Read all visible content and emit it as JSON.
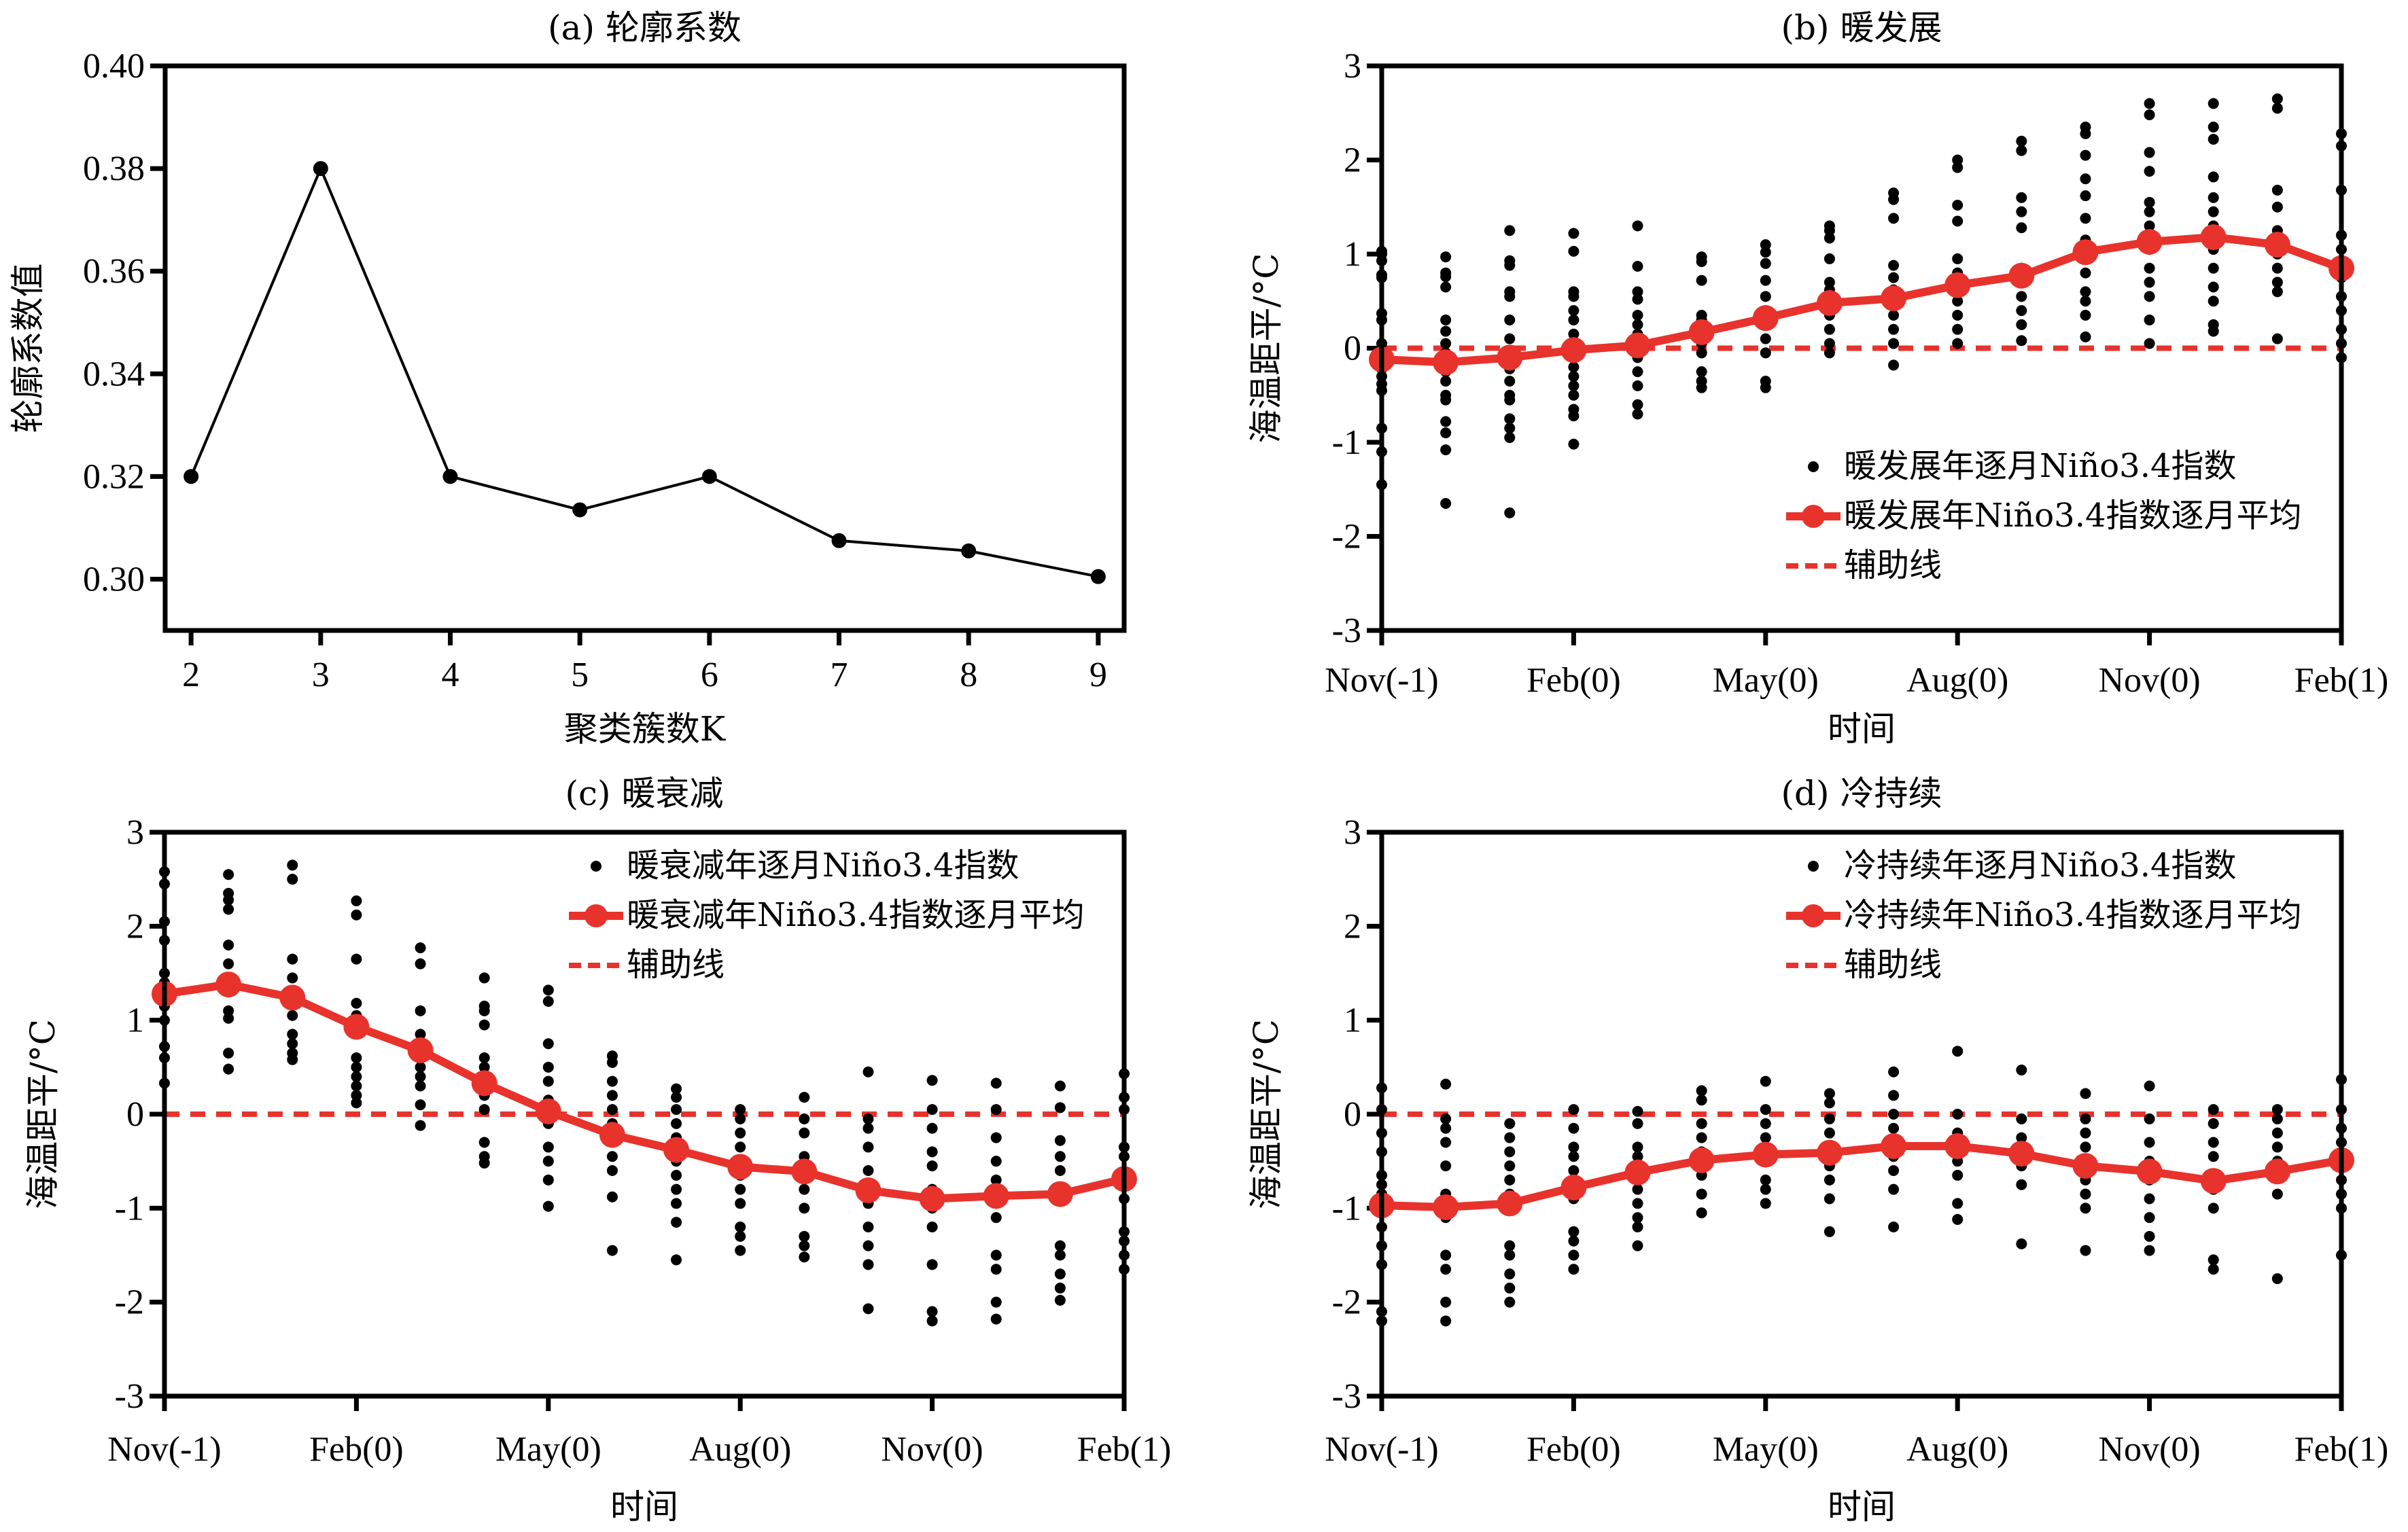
{
  "chart_data": [
    {
      "id": "a",
      "type": "line",
      "title": "(a) 轮廓系数",
      "xlabel": "聚类簇数K",
      "ylabel": "轮廓系数值",
      "x": [
        2,
        3,
        4,
        5,
        6,
        7,
        8,
        9
      ],
      "values": [
        0.32,
        0.38,
        0.32,
        0.3135,
        0.32,
        0.3075,
        0.3055,
        0.3005
      ],
      "xticks": [
        "2",
        "3",
        "4",
        "5",
        "6",
        "7",
        "8",
        "9"
      ],
      "yticks": [
        "0.30",
        "0.32",
        "0.34",
        "0.36",
        "0.38",
        "0.40"
      ],
      "ytick_values": [
        0.3,
        0.32,
        0.34,
        0.36,
        0.38,
        0.4
      ],
      "xlim": [
        1.8,
        9.2
      ],
      "ylim": [
        0.29,
        0.4
      ],
      "grid": false,
      "line_color": "#000000"
    },
    {
      "id": "b",
      "type": "scatter+line",
      "title": "(b) 暖发展",
      "xlabel": "时间",
      "ylabel": "海温距平/°C",
      "xticks": [
        "Nov(-1)",
        "Feb(0)",
        "May(0)",
        "Aug(0)",
        "Nov(0)",
        "Feb(1)"
      ],
      "xtick_positions": [
        0,
        3,
        6,
        9,
        12,
        15
      ],
      "yticks": [
        "-3",
        "-2",
        "-1",
        "0",
        "1",
        "2",
        "3"
      ],
      "ytick_values": [
        -3,
        -2,
        -1,
        0,
        1,
        2,
        3
      ],
      "xlim": [
        0,
        15
      ],
      "ylim": [
        -3,
        3
      ],
      "grid": false,
      "legend_position": "lower-right",
      "legend": [
        "暖发展年逐月Niño3.4指数",
        "暖发展年Niño3.4指数逐月平均",
        "辅助线"
      ],
      "mean": [
        -0.12,
        -0.15,
        -0.1,
        -0.02,
        0.03,
        0.17,
        0.32,
        0.48,
        0.53,
        0.67,
        0.77,
        1.02,
        1.13,
        1.18,
        1.1,
        0.85
      ],
      "reference_line": 0,
      "points": [
        [
          1.03,
          1.0,
          0.93,
          0.78,
          0.75,
          0.37,
          0.3,
          0.05,
          -0.12,
          -0.22,
          -0.3,
          -0.38,
          -0.45,
          -0.85,
          -1.1,
          -1.45
        ],
        [
          0.97,
          0.8,
          0.76,
          0.65,
          0.3,
          0.18,
          0.05,
          -0.05,
          -0.25,
          -0.35,
          -0.5,
          -0.55,
          -0.78,
          -0.9,
          -1.08,
          -1.65
        ],
        [
          1.25,
          0.93,
          0.88,
          0.6,
          0.55,
          0.3,
          0.1,
          -0.05,
          -0.22,
          -0.35,
          -0.5,
          -0.55,
          -0.75,
          -0.85,
          -0.95,
          -1.75
        ],
        [
          1.22,
          1.03,
          0.6,
          0.55,
          0.4,
          0.3,
          0.15,
          -0.05,
          -0.2,
          -0.3,
          -0.4,
          -0.5,
          -0.65,
          -0.72,
          -1.02
        ],
        [
          1.3,
          0.87,
          0.6,
          0.52,
          0.35,
          0.25,
          0.15,
          0.05,
          -0.1,
          -0.25,
          -0.4,
          -0.6,
          -0.7
        ],
        [
          0.97,
          0.92,
          0.72,
          0.35,
          0.3,
          0.18,
          0.05,
          -0.05,
          -0.25,
          -0.35,
          -0.42
        ],
        [
          1.1,
          1.02,
          0.9,
          0.72,
          0.55,
          0.4,
          0.25,
          0.1,
          -0.05,
          -0.35,
          -0.42
        ],
        [
          1.3,
          1.25,
          1.17,
          0.95,
          0.7,
          0.62,
          0.45,
          0.35,
          0.2,
          0.05,
          -0.05
        ],
        [
          1.65,
          1.58,
          1.38,
          0.88,
          0.75,
          0.62,
          0.5,
          0.35,
          0.2,
          0.05,
          -0.18
        ],
        [
          2.0,
          1.92,
          1.52,
          1.35,
          0.95,
          0.8,
          0.65,
          0.5,
          0.35,
          0.2,
          0.05
        ],
        [
          2.2,
          2.1,
          1.6,
          1.45,
          1.28,
          0.85,
          0.7,
          0.55,
          0.4,
          0.25,
          0.08
        ],
        [
          2.35,
          2.28,
          2.05,
          1.8,
          1.62,
          1.38,
          1.15,
          0.95,
          0.8,
          0.6,
          0.5,
          0.35,
          0.12
        ],
        [
          2.6,
          2.48,
          2.08,
          1.88,
          1.55,
          1.45,
          1.3,
          1.05,
          0.85,
          0.7,
          0.55,
          0.3,
          0.05
        ],
        [
          2.6,
          2.35,
          2.22,
          1.82,
          1.6,
          1.45,
          1.3,
          1.05,
          0.85,
          0.65,
          0.5,
          0.25,
          0.18
        ],
        [
          2.65,
          2.55,
          1.68,
          1.5,
          1.25,
          1.15,
          1.0,
          0.85,
          0.7,
          0.6,
          0.1
        ],
        [
          2.28,
          2.15,
          1.68,
          1.2,
          1.05,
          0.9,
          0.75,
          0.55,
          0.4,
          0.2,
          0.05,
          -0.1
        ]
      ]
    },
    {
      "id": "c",
      "type": "scatter+line",
      "title": "(c) 暖衰减",
      "xlabel": "时间",
      "ylabel": "海温距平/°C",
      "xticks": [
        "Nov(-1)",
        "Feb(0)",
        "May(0)",
        "Aug(0)",
        "Nov(0)",
        "Feb(1)"
      ],
      "xtick_positions": [
        0,
        3,
        6,
        9,
        12,
        15
      ],
      "yticks": [
        "-3",
        "-2",
        "-1",
        "0",
        "1",
        "2",
        "3"
      ],
      "ytick_values": [
        -3,
        -2,
        -1,
        0,
        1,
        2,
        3
      ],
      "xlim": [
        0,
        15
      ],
      "ylim": [
        -3,
        3
      ],
      "grid": false,
      "legend_position": "upper-right",
      "legend": [
        "暖衰减年逐月Niño3.4指数",
        "暖衰减年Niño3.4指数逐月平均",
        "辅助线"
      ],
      "mean": [
        1.28,
        1.38,
        1.24,
        0.93,
        0.68,
        0.33,
        0.03,
        -0.22,
        -0.38,
        -0.56,
        -0.61,
        -0.81,
        -0.9,
        -0.87,
        -0.85,
        -0.69
      ],
      "reference_line": 0,
      "points": [
        [
          2.58,
          2.45,
          2.05,
          1.85,
          1.5,
          1.4,
          1.3,
          1.15,
          1.0,
          0.72,
          0.6,
          0.33
        ],
        [
          2.55,
          2.35,
          2.28,
          2.18,
          1.8,
          1.6,
          1.45,
          1.3,
          1.1,
          1.02,
          0.65,
          0.48
        ],
        [
          2.65,
          2.5,
          1.65,
          1.45,
          1.2,
          1.05,
          0.85,
          0.75,
          0.65,
          0.58
        ],
        [
          2.27,
          2.12,
          1.65,
          1.18,
          1.05,
          0.6,
          0.5,
          0.4,
          0.3,
          0.2,
          0.12
        ],
        [
          1.77,
          1.6,
          1.1,
          0.85,
          0.75,
          0.5,
          0.4,
          0.3,
          0.1,
          -0.12
        ],
        [
          1.45,
          1.15,
          1.1,
          0.95,
          0.6,
          0.5,
          0.2,
          0.05,
          -0.3,
          -0.45,
          -0.52
        ],
        [
          1.32,
          1.2,
          0.75,
          0.5,
          0.35,
          0.15,
          0.05,
          -0.1,
          -0.35,
          -0.5,
          -0.7,
          -0.98
        ],
        [
          0.62,
          0.55,
          0.35,
          0.2,
          0.05,
          -0.1,
          -0.3,
          -0.45,
          -0.6,
          -0.88,
          -1.45
        ],
        [
          0.27,
          0.18,
          0.05,
          -0.1,
          -0.25,
          -0.5,
          -0.65,
          -0.8,
          -0.95,
          -1.15,
          -1.55
        ],
        [
          0.05,
          -0.05,
          -0.2,
          -0.35,
          -0.5,
          -0.65,
          -0.8,
          -0.95,
          -1.2,
          -1.3,
          -1.45
        ],
        [
          0.18,
          -0.05,
          -0.2,
          -0.45,
          -0.6,
          -0.8,
          -1.0,
          -1.3,
          -1.4,
          -1.52
        ],
        [
          0.45,
          -0.05,
          -0.15,
          -0.35,
          -0.6,
          -0.75,
          -0.95,
          -1.2,
          -1.4,
          -1.6,
          -2.07
        ],
        [
          0.36,
          0.05,
          -0.15,
          -0.4,
          -0.55,
          -0.8,
          -1.0,
          -1.2,
          -1.6,
          -2.1,
          -2.2
        ],
        [
          0.33,
          0.05,
          -0.25,
          -0.5,
          -0.7,
          -0.95,
          -1.1,
          -1.5,
          -1.65,
          -2.0,
          -2.18
        ],
        [
          0.3,
          0.07,
          -0.28,
          -0.45,
          -0.6,
          -0.9,
          -1.4,
          -1.5,
          -1.7,
          -1.85,
          -1.98
        ],
        [
          0.43,
          0.18,
          0.05,
          -0.35,
          -0.45,
          -0.7,
          -0.9,
          -1.25,
          -1.35,
          -1.5,
          -1.65
        ]
      ]
    },
    {
      "id": "d",
      "type": "scatter+line",
      "title": "(d) 冷持续",
      "xlabel": "时间",
      "ylabel": "海温距平/°C",
      "xticks": [
        "Nov(-1)",
        "Feb(0)",
        "May(0)",
        "Aug(0)",
        "Nov(0)",
        "Feb(1)"
      ],
      "xtick_positions": [
        0,
        3,
        6,
        9,
        12,
        15
      ],
      "yticks": [
        "-3",
        "-2",
        "-1",
        "0",
        "1",
        "2",
        "3"
      ],
      "ytick_values": [
        -3,
        -2,
        -1,
        0,
        1,
        2,
        3
      ],
      "xlim": [
        0,
        15
      ],
      "ylim": [
        -3,
        3
      ],
      "grid": false,
      "legend_position": "upper-right",
      "legend": [
        "冷持续年逐月Niño3.4指数",
        "冷持续年Niño3.4指数逐月平均",
        "辅助线"
      ],
      "mean": [
        -0.97,
        -0.99,
        -0.95,
        -0.78,
        -0.62,
        -0.49,
        -0.43,
        -0.41,
        -0.34,
        -0.34,
        -0.42,
        -0.55,
        -0.61,
        -0.71,
        -0.61,
        -0.49
      ],
      "reference_line": 0,
      "points": [
        [
          0.28,
          0.05,
          -0.2,
          -0.4,
          -0.65,
          -0.75,
          -0.85,
          -1.05,
          -1.2,
          -1.4,
          -1.6,
          -2.1,
          -2.2
        ],
        [
          0.32,
          -0.05,
          -0.15,
          -0.3,
          -0.55,
          -0.85,
          -1.1,
          -1.5,
          -1.65,
          -2.0,
          -2.2
        ],
        [
          -0.1,
          -0.25,
          -0.4,
          -0.55,
          -0.7,
          -0.85,
          -1.0,
          -1.4,
          -1.5,
          -1.7,
          -1.85,
          -2.0
        ],
        [
          0.05,
          -0.15,
          -0.35,
          -0.45,
          -0.6,
          -0.7,
          -0.9,
          -1.25,
          -1.35,
          -1.5,
          -1.65
        ],
        [
          0.03,
          -0.1,
          -0.35,
          -0.45,
          -0.6,
          -0.8,
          -0.95,
          -1.1,
          -1.2,
          -1.4
        ],
        [
          0.25,
          0.15,
          -0.1,
          -0.25,
          -0.4,
          -0.55,
          -0.65,
          -0.85,
          -1.05
        ],
        [
          0.35,
          0.05,
          -0.1,
          -0.25,
          -0.4,
          -0.5,
          -0.7,
          -0.8,
          -0.95
        ],
        [
          0.22,
          0.12,
          -0.05,
          -0.2,
          -0.35,
          -0.55,
          -0.7,
          -0.9,
          -1.25
        ],
        [
          0.45,
          0.2,
          0.0,
          -0.15,
          -0.3,
          -0.45,
          -0.6,
          -0.8,
          -1.2
        ],
        [
          0.67,
          0.0,
          -0.2,
          -0.35,
          -0.5,
          -0.65,
          -0.95,
          -1.12
        ],
        [
          0.47,
          -0.05,
          -0.25,
          -0.4,
          -0.55,
          -0.75,
          -1.38
        ],
        [
          0.22,
          -0.05,
          -0.2,
          -0.35,
          -0.5,
          -0.7,
          -0.85,
          -1.0,
          -1.45
        ],
        [
          0.3,
          -0.05,
          -0.3,
          -0.5,
          -0.7,
          -0.9,
          -1.1,
          -1.3,
          -1.45
        ],
        [
          0.05,
          -0.1,
          -0.3,
          -0.45,
          -0.65,
          -0.8,
          -1.0,
          -1.55,
          -1.65
        ],
        [
          0.05,
          -0.05,
          -0.2,
          -0.35,
          -0.5,
          -0.65,
          -0.85,
          -1.75
        ],
        [
          0.37,
          0.05,
          -0.15,
          -0.3,
          -0.5,
          -0.7,
          -0.85,
          -1.0,
          -1.5
        ]
      ]
    }
  ],
  "colors": {
    "scatter": "#000000",
    "mean_line": "#e8322c",
    "reference_line": "#e8322c",
    "axis": "#000000"
  }
}
